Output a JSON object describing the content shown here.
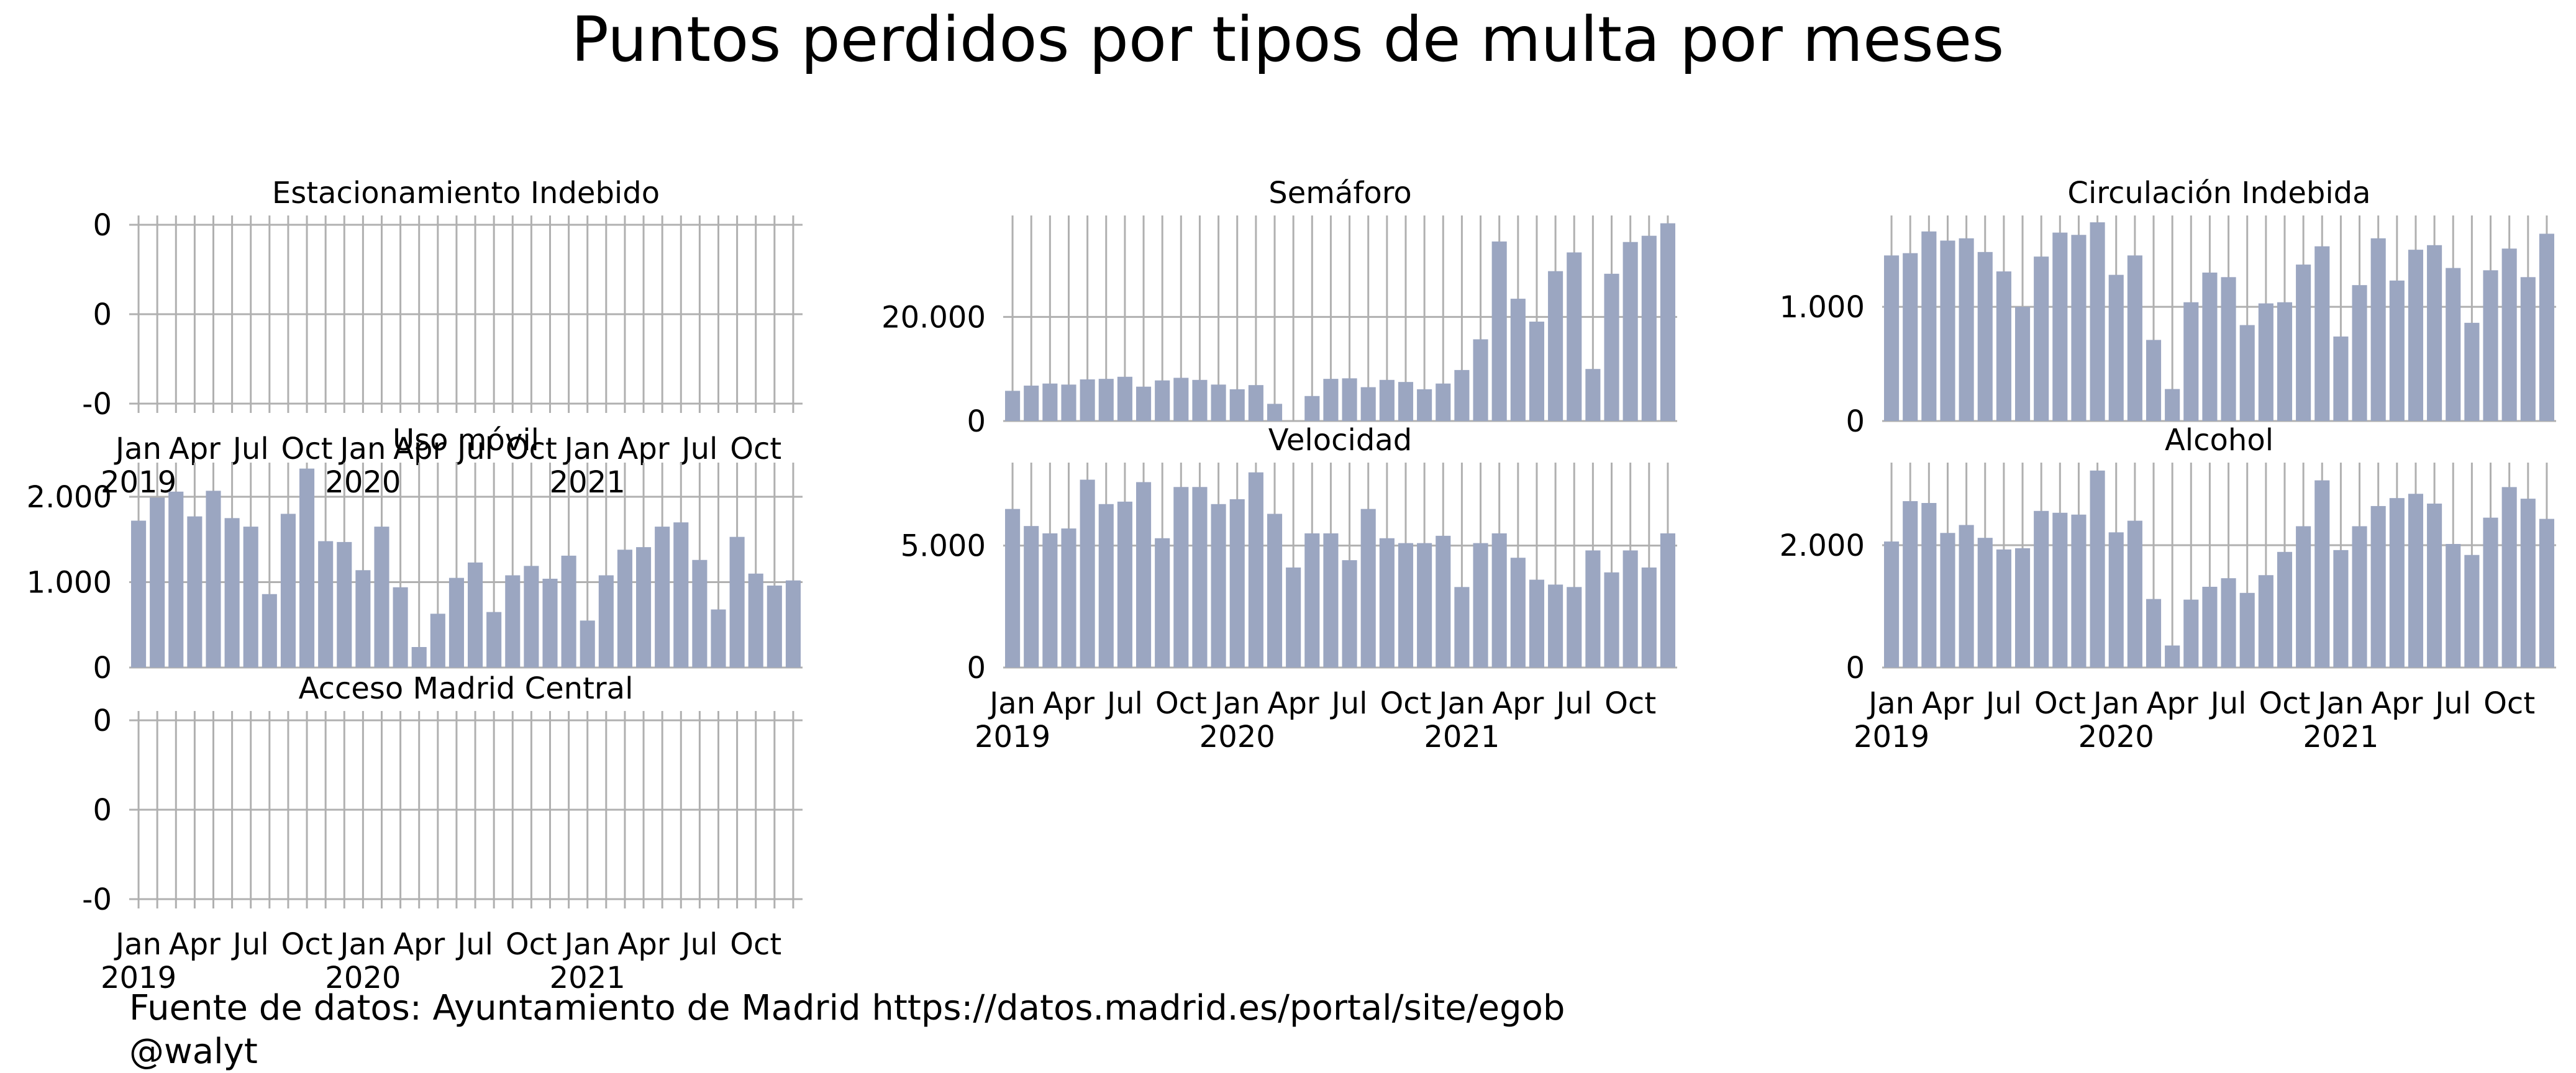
{
  "title": "Puntos perdidos por tipos de multa por meses",
  "source": "Fuente de datos: Ayuntamiento de Madrid https://datos.madrid.es/portal/site/egob",
  "credit": "@walyt",
  "colors": {
    "bar": "#9ba6c1",
    "grid": "#b0b0b0",
    "text": "#000000"
  },
  "chart_data": [
    {
      "type": "bar",
      "title": "Estacionamiento Indebido",
      "xlabel": "",
      "ylabel": "",
      "x_ticks": [
        "Jan\n2019",
        "Apr",
        "Jul",
        "Oct",
        "Jan\n2020",
        "Apr",
        "Jul",
        "Oct",
        "Jan\n2021",
        "Apr",
        "Jul",
        "Oct"
      ],
      "y_ticks": [
        "-0",
        "0",
        "0"
      ],
      "ylim": [
        -0.06,
        0.06
      ],
      "values": [
        0,
        0,
        0,
        0,
        0,
        0,
        0,
        0,
        0,
        0,
        0,
        0,
        0,
        0,
        0,
        0,
        0,
        0,
        0,
        0,
        0,
        0,
        0,
        0,
        0,
        0,
        0,
        0,
        0,
        0,
        0,
        0,
        0,
        0,
        0,
        0
      ],
      "grid": true
    },
    {
      "type": "bar",
      "title": "Semáforo",
      "xlabel": "",
      "ylabel": "",
      "x_ticks": [],
      "y_ticks": [
        "0",
        "20.000"
      ],
      "ylim": [
        0,
        39500
      ],
      "values": [
        5800,
        6800,
        7200,
        7000,
        8000,
        8100,
        8500,
        6600,
        7800,
        8300,
        7900,
        7000,
        6100,
        6900,
        3300,
        0,
        4800,
        8100,
        8200,
        6500,
        7900,
        7500,
        6100,
        7200,
        9800,
        15700,
        34500,
        23500,
        19100,
        28800,
        32400,
        10000,
        28300,
        34400,
        35600,
        38000
      ],
      "grid": true
    },
    {
      "type": "bar",
      "title": "Circulación Indebida",
      "xlabel": "",
      "ylabel": "",
      "x_ticks": [],
      "y_ticks": [
        "0",
        "1.000"
      ],
      "ylim": [
        0,
        1800
      ],
      "values": [
        1450,
        1470,
        1660,
        1580,
        1600,
        1480,
        1310,
        1000,
        1440,
        1650,
        1630,
        1740,
        1280,
        1450,
        710,
        280,
        1040,
        1300,
        1260,
        840,
        1030,
        1040,
        1370,
        1530,
        740,
        1190,
        1600,
        1230,
        1500,
        1540,
        1340,
        860,
        1320,
        1510,
        1260,
        1640
      ],
      "grid": true
    },
    {
      "type": "bar",
      "title": "Uso móvil",
      "xlabel": "",
      "ylabel": "",
      "x_ticks": [],
      "y_ticks": [
        "0",
        "1.000",
        "2.000"
      ],
      "ylim": [
        0,
        2400
      ],
      "values": [
        1720,
        1990,
        2060,
        1770,
        2070,
        1750,
        1650,
        860,
        1800,
        2330,
        1480,
        1470,
        1140,
        1650,
        940,
        240,
        630,
        1050,
        1230,
        650,
        1080,
        1190,
        1040,
        1310,
        550,
        1080,
        1380,
        1410,
        1650,
        1700,
        1260,
        680,
        1530,
        1100,
        960,
        1020
      ],
      "grid": true
    },
    {
      "type": "bar",
      "title": "Velocidad",
      "xlabel": "",
      "ylabel": "",
      "x_ticks": [
        "Jan\n2019",
        "Apr",
        "Jul",
        "Oct",
        "Jan\n2020",
        "Apr",
        "Jul",
        "Oct",
        "Jan\n2021",
        "Apr",
        "Jul",
        "Oct"
      ],
      "y_ticks": [
        "0",
        "5.000"
      ],
      "ylim": [
        0,
        8400
      ],
      "values": [
        6500,
        5800,
        5500,
        5700,
        7700,
        6700,
        6800,
        7600,
        5300,
        7400,
        7400,
        6700,
        6900,
        8000,
        6300,
        4100,
        5500,
        5500,
        4400,
        6500,
        5300,
        5100,
        5100,
        5400,
        3300,
        5100,
        5500,
        4500,
        3600,
        3400,
        3300,
        4800,
        3900,
        4800,
        4100,
        5500
      ],
      "grid": true
    },
    {
      "type": "bar",
      "title": "Alcohol",
      "xlabel": "",
      "ylabel": "",
      "x_ticks": [
        "Jan\n2019",
        "Apr",
        "Jul",
        "Oct",
        "Jan\n2020",
        "Apr",
        "Jul",
        "Oct",
        "Jan\n2021",
        "Apr",
        "Jul",
        "Oct"
      ],
      "y_ticks": [
        "0",
        "2.000"
      ],
      "ylim": [
        0,
        3350
      ],
      "values": [
        2060,
        2720,
        2690,
        2200,
        2330,
        2120,
        1930,
        1950,
        2560,
        2530,
        2500,
        3220,
        2210,
        2400,
        1120,
        360,
        1110,
        1320,
        1460,
        1220,
        1510,
        1890,
        2310,
        3060,
        1920,
        2310,
        2640,
        2770,
        2840,
        2680,
        2020,
        1840,
        2450,
        2950,
        2760,
        2430
      ],
      "grid": true
    },
    {
      "type": "bar",
      "title": "Acceso Madrid Central",
      "xlabel": "",
      "ylabel": "",
      "x_ticks": [
        "Jan\n2019",
        "Apr",
        "Jul",
        "Oct",
        "Jan\n2020",
        "Apr",
        "Jul",
        "Oct",
        "Jan\n2021",
        "Apr",
        "Jul",
        "Oct"
      ],
      "y_ticks": [
        "-0",
        "0",
        "0"
      ],
      "ylim": [
        -0.06,
        0.06
      ],
      "values": [
        0,
        0,
        0,
        0,
        0,
        0,
        0,
        0,
        0,
        0,
        0,
        0,
        0,
        0,
        0,
        0,
        0,
        0,
        0,
        0,
        0,
        0,
        0,
        0,
        0,
        0,
        0,
        0,
        0,
        0,
        0,
        0,
        0,
        0,
        0,
        0
      ],
      "grid": true
    }
  ]
}
